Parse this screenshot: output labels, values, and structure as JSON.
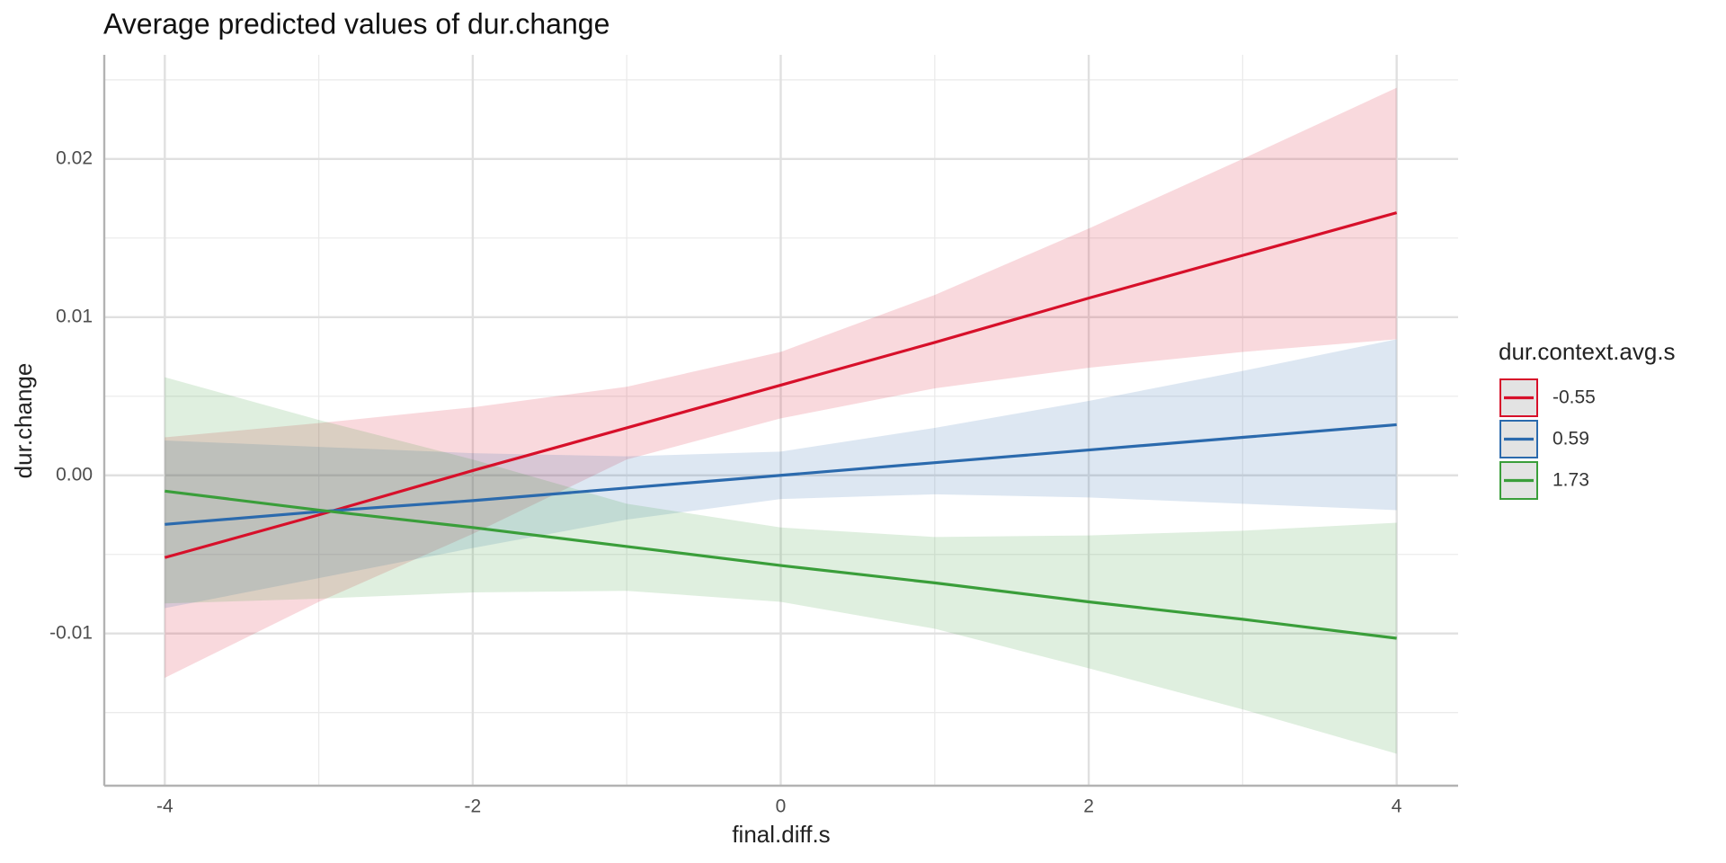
{
  "chart_data": {
    "type": "line",
    "title": "Average predicted values of dur.change",
    "x_label": "final.diff.s",
    "y_label": "dur.change",
    "legend_title": "dur.context.avg.s",
    "legend_position": "right",
    "grid": true,
    "x": [
      -4,
      -3,
      -2,
      -1,
      0,
      1,
      2,
      3,
      4
    ],
    "xlim": [
      -4.393,
      4.399
    ],
    "ylim": [
      -0.01962,
      0.02658
    ],
    "xticks": [
      -4,
      -2,
      0,
      2,
      4
    ],
    "xminor": [
      -3,
      -1,
      1,
      3
    ],
    "yticks": [
      -0.01,
      {
        "value": 0,
        "label": "0.00"
      },
      0.01,
      0.02
    ],
    "yminor": [
      -0.015,
      -0.005,
      0.005,
      0.015,
      0.025
    ],
    "series": [
      {
        "name": "-0.55",
        "color": "#d7102a",
        "values": [
          -0.0052,
          -0.0025,
          0.0003,
          0.003,
          0.0057,
          0.0084,
          0.0112,
          0.0139,
          0.0166
        ],
        "upper": [
          0.0024,
          0.0033,
          0.0043,
          0.0056,
          0.0078,
          0.0114,
          0.0156,
          0.02,
          0.0245
        ],
        "lower": [
          -0.0128,
          -0.008,
          -0.0037,
          0.001,
          0.0036,
          0.0055,
          0.0068,
          0.0078,
          0.0086
        ]
      },
      {
        "name": "0.59",
        "color": "#2b6aad",
        "values": [
          -0.0031,
          -0.0023,
          -0.0016,
          -0.0008,
          0.0,
          0.0008,
          0.0016,
          0.0024,
          0.0032
        ],
        "upper": [
          0.0022,
          0.0018,
          0.0014,
          0.0012,
          0.0015,
          0.003,
          0.0047,
          0.0066,
          0.0086
        ],
        "lower": [
          -0.0084,
          -0.0065,
          -0.0046,
          -0.0028,
          -0.0015,
          -0.0012,
          -0.0014,
          -0.0018,
          -0.0022
        ]
      },
      {
        "name": "1.73",
        "color": "#3a9e3a",
        "values": [
          -0.001,
          -0.0022,
          -0.0033,
          -0.0045,
          -0.0057,
          -0.0068,
          -0.008,
          -0.0091,
          -0.0103
        ],
        "upper": [
          0.0062,
          0.0035,
          0.001,
          -0.0018,
          -0.0033,
          -0.0039,
          -0.0038,
          -0.0035,
          -0.003
        ],
        "lower": [
          -0.0081,
          -0.0078,
          -0.0074,
          -0.0073,
          -0.008,
          -0.0097,
          -0.0122,
          -0.0148,
          -0.0176
        ]
      }
    ]
  }
}
